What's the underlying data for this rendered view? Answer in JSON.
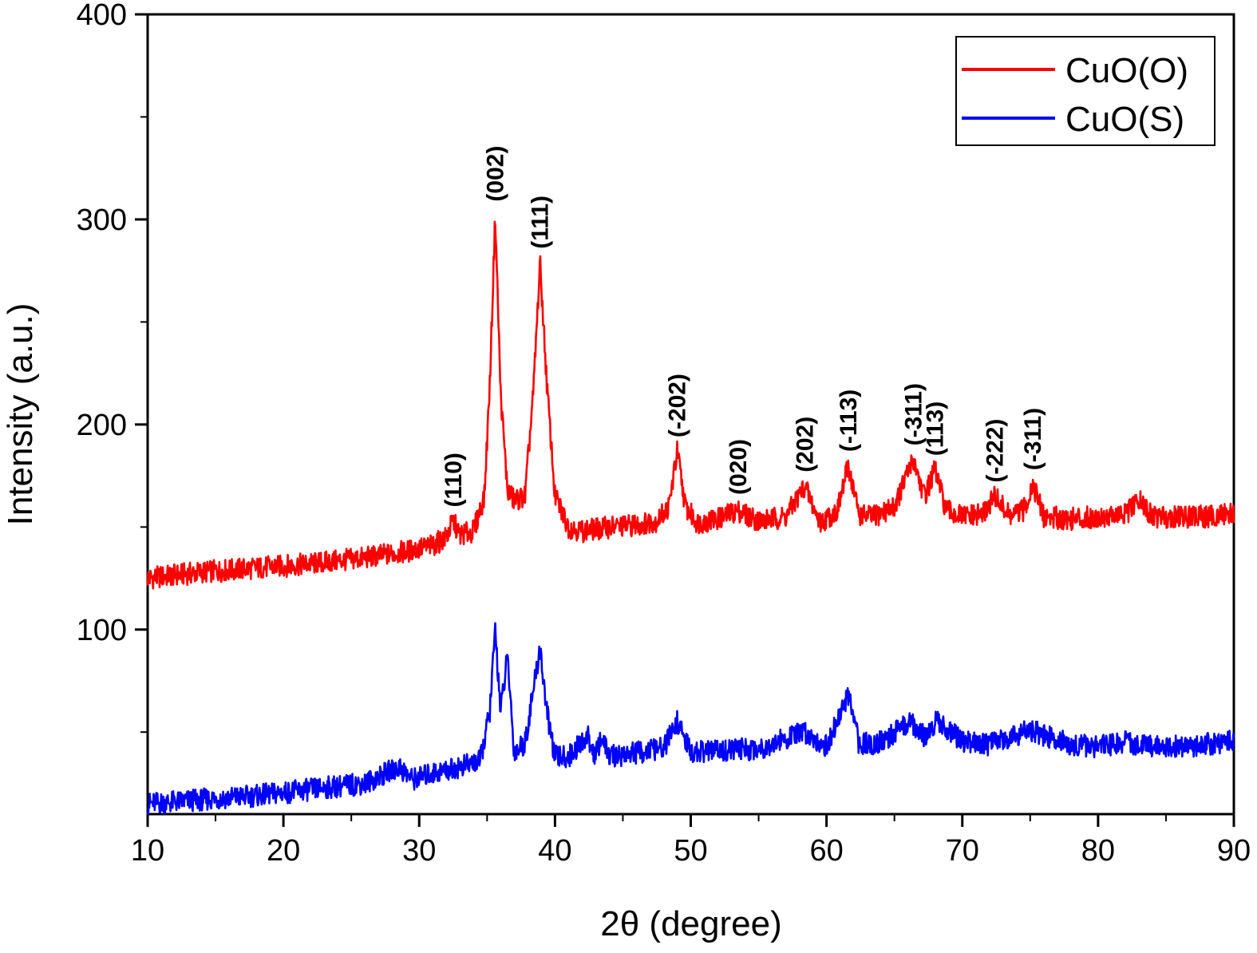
{
  "chart_data": {
    "type": "line",
    "xlabel": "2θ (degree)",
    "ylabel": "Intensity (a.u.)",
    "xlim": [
      10,
      90
    ],
    "ylim": [
      10,
      400
    ],
    "xticks": [
      10,
      20,
      30,
      40,
      50,
      60,
      70,
      80,
      90
    ],
    "xtick_labels": [
      "10",
      "20",
      "30",
      "40",
      "50",
      "60",
      "70",
      "80",
      "90"
    ],
    "yticks": [
      100,
      200,
      300,
      400
    ],
    "ytick_labels": [
      "100",
      "200",
      "300",
      "400"
    ],
    "grid": false,
    "legend_position": "top-right",
    "series": [
      {
        "name": "CuO(O)",
        "color": "#ff0000",
        "x": [
          10,
          14,
          18,
          22,
          26,
          29,
          31,
          32,
          32.5,
          33,
          34,
          34.8,
          35.2,
          35.6,
          36.0,
          36.5,
          37.0,
          37.8,
          38.4,
          38.9,
          39.4,
          40.0,
          41.0,
          42,
          44,
          46,
          47.5,
          48.4,
          49.0,
          49.6,
          50.5,
          52,
          53.5,
          55,
          57,
          58.4,
          59.5,
          60.8,
          61.6,
          62.4,
          63.5,
          65,
          66.4,
          67.2,
          68.0,
          68.8,
          70,
          71.5,
          72.4,
          73.5,
          74.5,
          75.2,
          76,
          78,
          80,
          82,
          83,
          84,
          86,
          88,
          90
        ],
        "y": [
          125,
          128,
          130,
          132,
          135,
          138,
          141,
          145,
          153,
          146,
          148,
          165,
          220,
          302,
          215,
          168,
          163,
          165,
          215,
          279,
          220,
          165,
          150,
          148,
          150,
          151,
          153,
          160,
          187,
          160,
          152,
          154,
          158,
          153,
          155,
          170,
          152,
          158,
          180,
          156,
          155,
          160,
          183,
          165,
          178,
          158,
          155,
          156,
          165,
          155,
          158,
          171,
          155,
          154,
          155,
          156,
          163,
          155,
          155,
          155,
          157
        ]
      },
      {
        "name": "CuO(S)",
        "color": "#0000ff",
        "x": [
          10,
          14,
          18,
          22,
          26,
          28.5,
          29.5,
          31,
          33,
          34.5,
          35.2,
          35.6,
          36.0,
          36.5,
          37.0,
          37.8,
          38.4,
          38.9,
          39.4,
          40.0,
          41.0,
          42.4,
          43.0,
          43.4,
          44,
          46,
          48,
          49.0,
          50,
          52,
          55,
          58.4,
          60,
          61.6,
          62.4,
          64,
          66.2,
          67.2,
          68.2,
          70,
          72,
          75,
          78,
          80,
          82,
          84,
          86,
          88,
          90
        ],
        "y": [
          15,
          17,
          19,
          22,
          25,
          33,
          27,
          30,
          33,
          36,
          60,
          100,
          60,
          87,
          40,
          45,
          70,
          91,
          60,
          38,
          38,
          48,
          38,
          48,
          38,
          40,
          42,
          55,
          40,
          41,
          42,
          50,
          43,
          68,
          44,
          45,
          55,
          48,
          56,
          45,
          44,
          51,
          44,
          43,
          45,
          43,
          43,
          44,
          46
        ]
      }
    ],
    "annotations": [
      {
        "text": "(110)",
        "x": 32.5,
        "y": 155
      },
      {
        "text": "(002)",
        "x": 35.6,
        "y": 304
      },
      {
        "text": "(111)",
        "x": 38.9,
        "y": 281
      },
      {
        "text": "(-202)",
        "x": 49.0,
        "y": 189
      },
      {
        "text": "(020)",
        "x": 53.5,
        "y": 161
      },
      {
        "text": "(202)",
        "x": 58.4,
        "y": 172
      },
      {
        "text": "(-113)",
        "x": 61.6,
        "y": 182
      },
      {
        "text": "(-311)",
        "x": 66.4,
        "y": 185
      },
      {
        "text": "(113)",
        "x": 68.0,
        "y": 180
      },
      {
        "text": "(-222)",
        "x": 72.4,
        "y": 167
      },
      {
        "text": "(-311)",
        "x": 75.2,
        "y": 173
      }
    ]
  }
}
